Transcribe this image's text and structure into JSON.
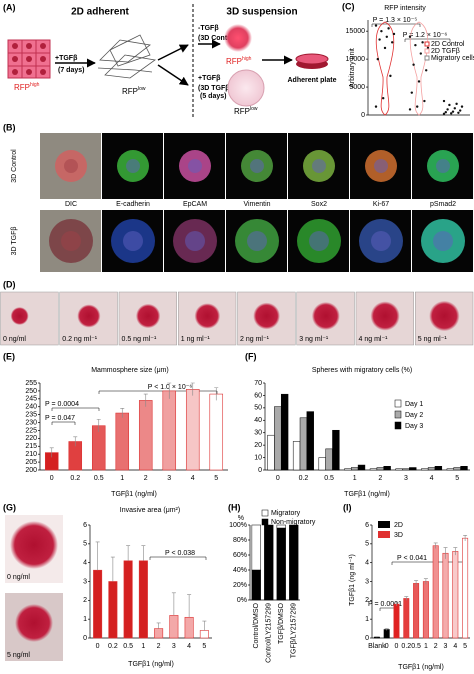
{
  "figure": {
    "panel_a": {
      "label": "(A)",
      "title_2d": "2D adherent",
      "title_3d": "3D suspension",
      "rfp": "RFP",
      "high": "high",
      "low": "low",
      "tgf_add": "+TGFβ",
      "days7": "(7 days)",
      "tgf_minus": "-TGFβ",
      "control_3d": "(3D Control)",
      "tgf_3d": "(3D TGFβ)",
      "days5": "(5 days)",
      "plate": "Adherent plate"
    },
    "panel_b": {
      "label": "(B)",
      "rows": [
        "3D Control",
        "3D TGFβ"
      ],
      "stains": [
        "DIC",
        "E-cadherin",
        "EpCAM",
        "Vimentin",
        "Sox2",
        "Ki-67",
        "pSmad2"
      ]
    },
    "panel_d": {
      "label": "(D)",
      "concentrations": [
        "0 ng/ml",
        "0.2 ng ml⁻¹",
        "0.5 ng ml⁻¹",
        "1 ng ml⁻¹",
        "2 ng ml⁻¹",
        "3 ng ml⁻¹",
        "4 ng ml⁻¹",
        "5 ng ml⁻¹"
      ]
    }
  },
  "chart_data": [
    {
      "type": "scatter",
      "panel": "(C)",
      "title": "RFP intensity",
      "ylabel": "Arbitrary unit",
      "ylim": [
        0,
        17000
      ],
      "yticks": [
        0,
        5000,
        10000,
        15000
      ],
      "annotations": [
        "P = 1.3 × 10⁻⁵",
        "P = 1.2 × 10⁻⁶"
      ],
      "series": [
        {
          "name": "2D Control",
          "color": "#e03030",
          "values": [
            16000,
            15500,
            15000,
            14500,
            14000,
            13500,
            13000,
            12000,
            10000,
            7000,
            3000,
            1500
          ]
        },
        {
          "name": "2D TGFβ",
          "color": "#f4a0a0",
          "values": [
            14000,
            13000,
            12500,
            12000,
            11000,
            9000,
            8000,
            6000,
            4000,
            2500,
            1500,
            1000
          ]
        },
        {
          "name": "Migratory cells",
          "color": "#888888",
          "values": [
            2500,
            2000,
            1800,
            1500,
            1200,
            1000,
            800,
            600,
            500,
            400,
            300,
            200
          ]
        }
      ]
    },
    {
      "type": "bar",
      "panel": "(E)",
      "title": "Mammosphere size (μm)",
      "xlabel": "TGFβ1 (ng/ml)",
      "categories": [
        "0",
        "0.2",
        "0.5",
        "1",
        "2",
        "3",
        "4",
        "5"
      ],
      "values": [
        211,
        218,
        228,
        236,
        244,
        250,
        251,
        248
      ],
      "errors": [
        3,
        3,
        4,
        3,
        4,
        5,
        4,
        4
      ],
      "colors": [
        "#d42020",
        "#e04040",
        "#e45858",
        "#e87070",
        "#ec8888",
        "#f0a0a0",
        "#f6c6c6",
        "#ffffff"
      ],
      "ylim": [
        200,
        255
      ],
      "yticks": [
        200,
        205,
        210,
        215,
        220,
        225,
        230,
        235,
        240,
        245,
        250,
        255
      ],
      "annotations": [
        "P = 0.0004",
        "P = 0.047",
        "P < 1.0 × 10⁻⁶"
      ]
    },
    {
      "type": "grouped_bar",
      "panel": "(F)",
      "title": "Spheres with migratory cells (%)",
      "xlabel": "TGFβ1 (ng/ml)",
      "categories": [
        "0",
        "0.2",
        "0.5",
        "1",
        "2",
        "3",
        "4",
        "5"
      ],
      "series": [
        {
          "name": "Day 1",
          "color": "#ffffff",
          "values": [
            28,
            23,
            10,
            1,
            1,
            1,
            1,
            1
          ]
        },
        {
          "name": "Day 2",
          "color": "#aaaaaa",
          "values": [
            51,
            42,
            17,
            2,
            2,
            1,
            2,
            2
          ]
        },
        {
          "name": "Day 3",
          "color": "#000000",
          "values": [
            61,
            47,
            32,
            4,
            3,
            2,
            3,
            3
          ]
        }
      ],
      "ylim": [
        0,
        70
      ],
      "yticks": [
        0,
        10,
        20,
        30,
        40,
        50,
        60,
        70
      ]
    },
    {
      "type": "bar",
      "panel": "(G)",
      "title": "Invasive area (μm²)",
      "xlabel": "TGFβ1 (ng/ml)",
      "image_labels": [
        "0 ng/ml",
        "5 ng/ml"
      ],
      "categories": [
        "0",
        "0.2",
        "0.5",
        "1",
        "2",
        "3",
        "4",
        "5"
      ],
      "values": [
        3.6,
        3.0,
        4.1,
        4.1,
        0.5,
        1.2,
        1.1,
        0.4
      ],
      "errors": [
        1.5,
        1.3,
        0.8,
        0.8,
        0.3,
        1.2,
        1.2,
        0.5
      ],
      "colors": [
        "#d42020",
        "#d42020",
        "#d42020",
        "#d42020",
        "#f3a8a8",
        "#f3a8a8",
        "#f3a8a8",
        "#ffffff"
      ],
      "ylim": [
        0,
        6
      ],
      "yticks": [
        0,
        1,
        2,
        3,
        4,
        5,
        6
      ],
      "annotations": [
        "P < 0.038"
      ]
    },
    {
      "type": "stacked_bar",
      "panel": "(H)",
      "ylabel": "%",
      "categories": [
        "Control/DMSO",
        "Control/LY2157299",
        "TGFβ/DMSO",
        "TGFβ/LY2157299"
      ],
      "series": [
        {
          "name": "Migratory",
          "color": "#ffffff",
          "values": [
            60,
            0,
            4,
            0
          ]
        },
        {
          "name": "Non-migratory",
          "color": "#000000",
          "values": [
            40,
            100,
            96,
            100
          ]
        }
      ],
      "ylim": [
        0,
        100
      ],
      "yticks": [
        {
          "value": 0,
          "label": "0%"
        },
        {
          "value": 20,
          "label": "20%"
        },
        {
          "value": 40,
          "label": "40%"
        },
        {
          "value": 60,
          "label": "60%"
        },
        {
          "value": 80,
          "label": "80%"
        },
        {
          "value": 100,
          "label": "100%"
        }
      ]
    },
    {
      "type": "bar",
      "panel": "(I)",
      "ylabel": "TGFβ1 (ng ml⁻¹)",
      "xlabel": "TGFβ1 (ng/ml)",
      "legend": [
        {
          "name": "2D",
          "color": "#000000"
        },
        {
          "name": "3D",
          "color": "#e03030"
        }
      ],
      "categories": [
        "Blank",
        "0",
        "0",
        "0.2",
        "0.5",
        "1",
        "2",
        "3",
        "4",
        "5"
      ],
      "values": [
        0.05,
        0.45,
        1.8,
        2.1,
        2.9,
        3.0,
        4.9,
        4.5,
        4.6,
        5.3
      ],
      "errors": [
        0.02,
        0.05,
        0.1,
        0.1,
        0.15,
        0.15,
        0.15,
        0.3,
        0.2,
        0.15
      ],
      "colors": [
        "#000000",
        "#000000",
        "#e02020",
        "#e43c3c",
        "#e85858",
        "#ec7474",
        "#f09090",
        "#f4acac",
        "#f8caca",
        "#ffffff"
      ],
      "ylim": [
        0,
        6
      ],
      "yticks": [
        0,
        1,
        2,
        3,
        4,
        5,
        6
      ],
      "annotations": [
        "P = 0.0001",
        "P < 0.041"
      ]
    }
  ]
}
